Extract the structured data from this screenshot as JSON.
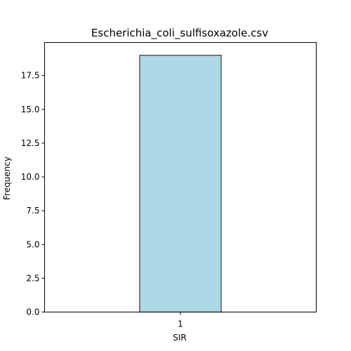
{
  "chart_data": {
    "type": "bar",
    "title": "Escherichia_coli_sulfisoxazole.csv",
    "xlabel": "SIR",
    "ylabel": "Frequency",
    "categories": [
      "1"
    ],
    "values": [
      19
    ],
    "ylim": [
      0,
      19.95
    ],
    "yticks": [
      0.0,
      2.5,
      5.0,
      7.5,
      10.0,
      12.5,
      15.0,
      17.5
    ],
    "ytick_labels": [
      "0.0",
      "2.5",
      "5.0",
      "7.5",
      "10.0",
      "12.5",
      "15.0",
      "17.5"
    ],
    "grid": false,
    "legend": "none",
    "colors": {
      "bar_fill": "#add8e6",
      "bar_edge": "#333333",
      "axis": "#000000"
    }
  }
}
